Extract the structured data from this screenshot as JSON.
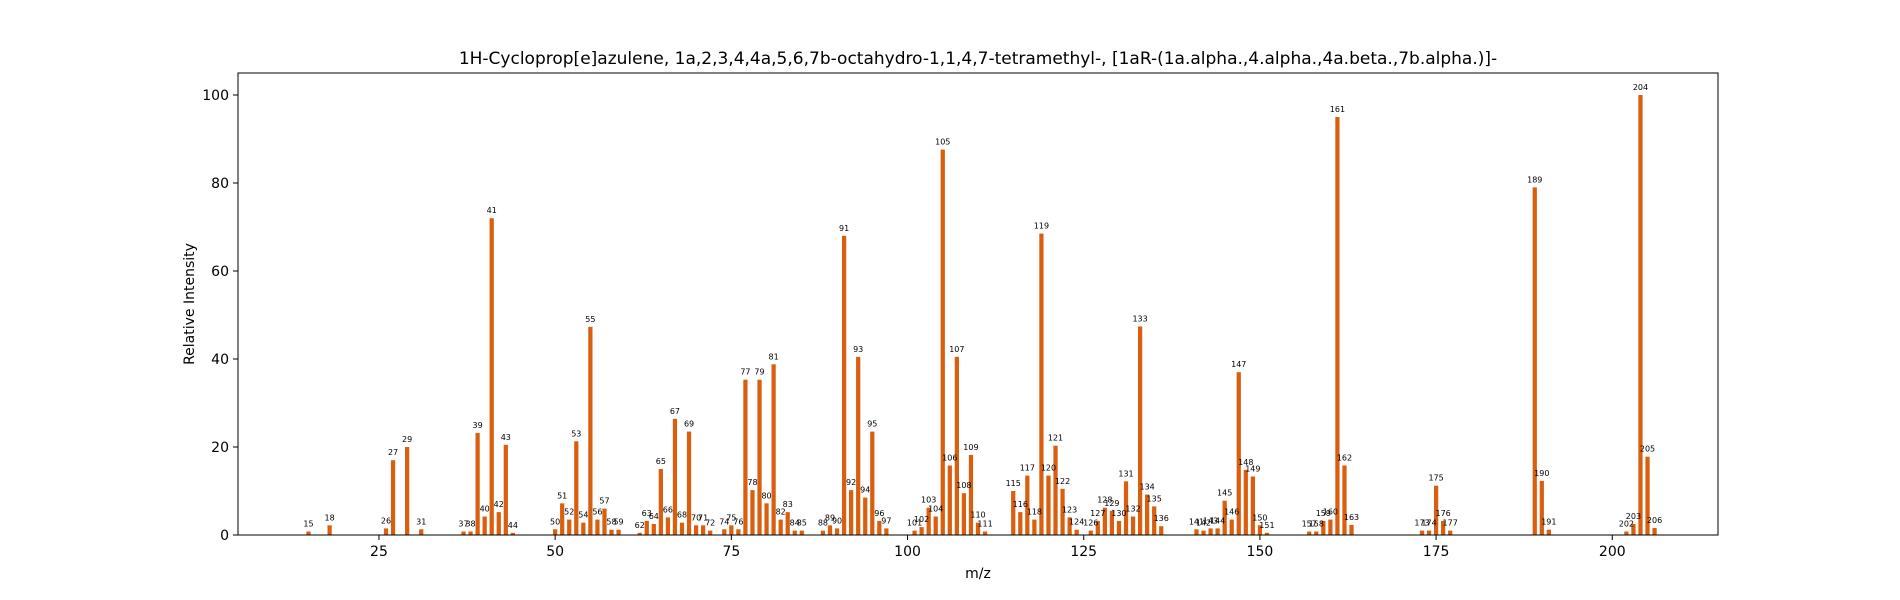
{
  "chart_data": {
    "type": "bar",
    "title": "1H-Cycloprop[e]azulene, 1a,2,3,4,4a,5,6,7b-octahydro-1,1,4,7-tetramethyl-, [1aR-(1a.alpha.,4.alpha.,4a.beta.,7b.alpha.)]-",
    "xlabel": "m/z",
    "ylabel": "Relative Intensity",
    "xlim": [
      5,
      215
    ],
    "ylim": [
      0,
      105
    ],
    "xticks": [
      25,
      50,
      75,
      100,
      125,
      150,
      175,
      200
    ],
    "yticks": [
      0,
      20,
      40,
      60,
      80,
      100
    ],
    "bar_color": "#d95f0e",
    "grid": false,
    "x": [
      15,
      18,
      26,
      27,
      29,
      31,
      37,
      38,
      39,
      40,
      41,
      42,
      43,
      44,
      50,
      51,
      52,
      53,
      54,
      55,
      56,
      57,
      58,
      59,
      62,
      63,
      64,
      65,
      66,
      67,
      68,
      69,
      70,
      71,
      72,
      74,
      75,
      76,
      77,
      78,
      79,
      80,
      81,
      82,
      83,
      84,
      85,
      88,
      89,
      90,
      91,
      92,
      93,
      94,
      95,
      96,
      97,
      101,
      102,
      103,
      104,
      105,
      106,
      107,
      108,
      109,
      110,
      111,
      115,
      116,
      117,
      118,
      119,
      120,
      121,
      122,
      123,
      124,
      126,
      127,
      128,
      129,
      130,
      131,
      132,
      133,
      134,
      135,
      136,
      141,
      142,
      143,
      144,
      145,
      146,
      147,
      148,
      149,
      150,
      151,
      157,
      158,
      159,
      160,
      161,
      162,
      163,
      173,
      174,
      175,
      176,
      177,
      189,
      190,
      191,
      202,
      203,
      204,
      205,
      206
    ],
    "values": [
      0.8,
      2.2,
      1.5,
      17.0,
      20.0,
      1.3,
      0.8,
      0.8,
      23.2,
      4.2,
      72.0,
      5.2,
      20.5,
      0.5,
      1.3,
      7.2,
      3.5,
      21.3,
      2.8,
      47.3,
      3.5,
      6.0,
      1.2,
      1.2,
      0.5,
      3.2,
      2.5,
      15.0,
      4.0,
      26.4,
      2.8,
      23.5,
      2.2,
      2.2,
      1.0,
      1.3,
      2.2,
      1.3,
      35.3,
      10.2,
      35.3,
      7.2,
      38.8,
      3.5,
      5.2,
      1.0,
      1.0,
      1.0,
      2.2,
      1.5,
      68.0,
      10.2,
      40.5,
      8.5,
      23.5,
      3.2,
      1.5,
      1.0,
      1.8,
      6.2,
      4.2,
      87.6,
      15.8,
      40.5,
      9.5,
      18.2,
      2.8,
      0.8,
      10.0,
      5.2,
      13.5,
      3.5,
      68.5,
      13.5,
      20.3,
      10.5,
      4.0,
      1.2,
      1.0,
      3.2,
      6.2,
      5.5,
      3.2,
      12.2,
      4.2,
      47.4,
      9.2,
      6.5,
      2.0,
      1.3,
      1.0,
      1.5,
      1.5,
      7.8,
      3.5,
      37.0,
      14.8,
      13.3,
      2.2,
      0.5,
      0.8,
      0.8,
      3.2,
      3.5,
      95.0,
      15.8,
      2.3,
      1.0,
      1.0,
      11.2,
      3.2,
      1.0,
      79.0,
      12.3,
      1.2,
      0.8,
      2.5,
      100.0,
      17.8,
      1.6
    ]
  }
}
